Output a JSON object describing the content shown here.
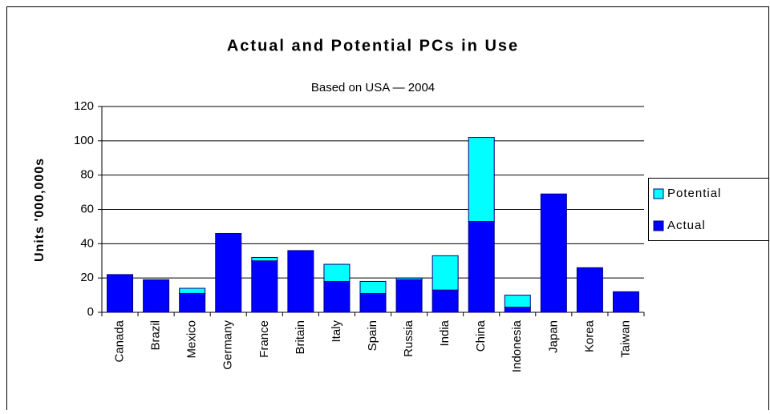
{
  "chart_data": {
    "type": "stacked_bar",
    "title": "Actual and Potential PCs in Use",
    "subtitle": "Based on USA — 2004",
    "y_label": "Units '000,000s",
    "categories": [
      "Canada",
      "Brazil",
      "Mexico",
      "Germany",
      "France",
      "Britain",
      "Italy",
      "Spain",
      "Russia",
      "India",
      "China",
      "Indonesia",
      "Japan",
      "Korea",
      "Taiwan"
    ],
    "series": [
      {
        "name": "Actual",
        "color": "#0000ff",
        "values": [
          22,
          19,
          11,
          46,
          30,
          36,
          18,
          11,
          19,
          13,
          53,
          3,
          69,
          26,
          12
        ]
      },
      {
        "name": "Potential",
        "color": "#00ffff",
        "values": [
          0,
          0,
          3,
          0,
          2,
          0,
          10,
          7,
          1,
          20,
          49,
          7,
          0,
          0,
          0
        ]
      }
    ],
    "ylim": [
      0,
      120
    ],
    "yticks": [
      0,
      20,
      40,
      60,
      80,
      100,
      120
    ],
    "grid": true,
    "legend": "right"
  }
}
